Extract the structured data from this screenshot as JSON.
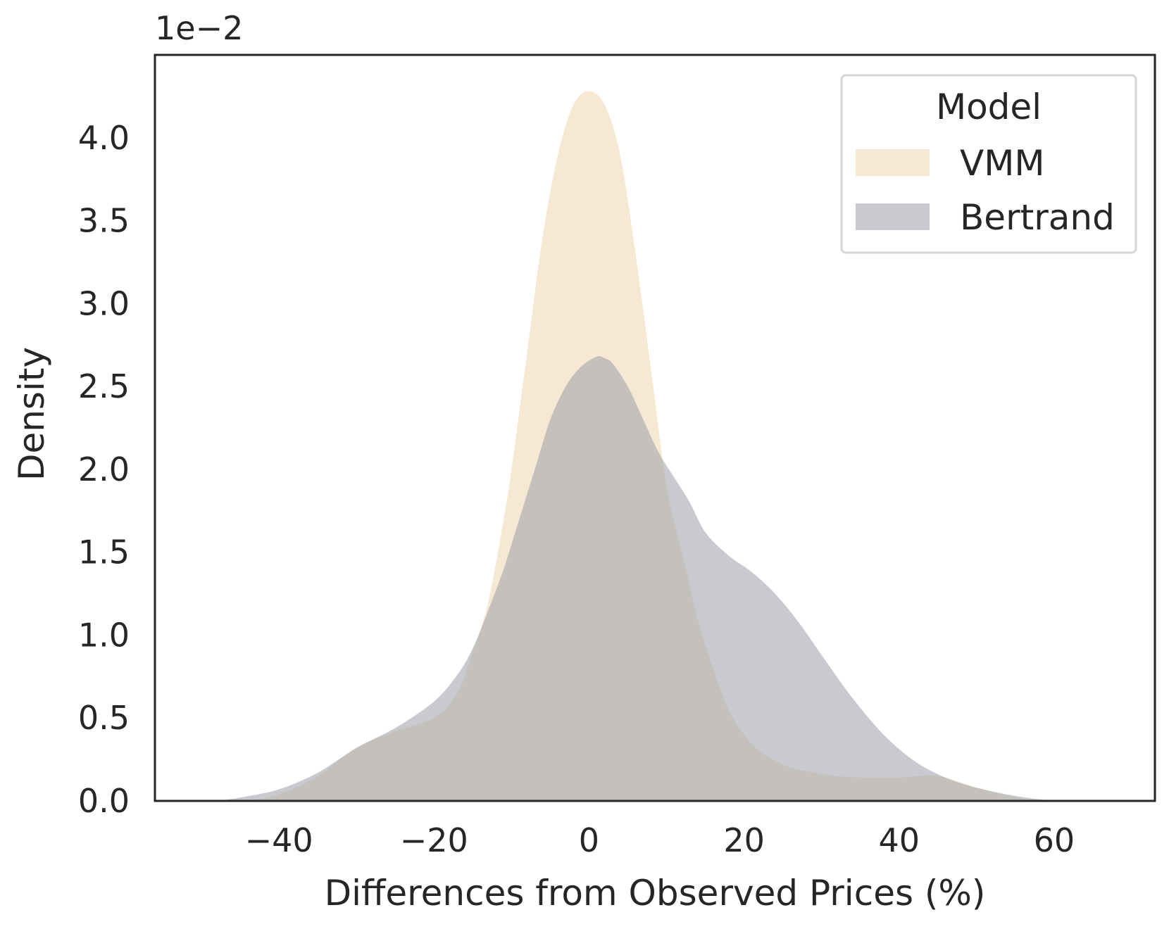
{
  "chart_data": {
    "type": "area",
    "title": "",
    "xlabel": "Differences from Observed Prices (%)",
    "ylabel": "Density",
    "offset_label": "1e−2",
    "xlim": [
      -56,
      73
    ],
    "ylim": [
      0,
      4.5
    ],
    "xticks": [
      -40,
      -20,
      0,
      20,
      40,
      60
    ],
    "xtick_labels": [
      "−40",
      "−20",
      "0",
      "20",
      "40",
      "60"
    ],
    "yticks": [
      0.0,
      0.5,
      1.0,
      1.5,
      2.0,
      2.5,
      3.0,
      3.5,
      4.0
    ],
    "ytick_labels": [
      "0.0",
      "0.5",
      "1.0",
      "1.5",
      "2.0",
      "2.5",
      "3.0",
      "3.5",
      "4.0"
    ],
    "grid": false,
    "legend": {
      "title": "Model",
      "placement": "top-right"
    },
    "series": [
      {
        "name": "VMM",
        "color": "#f1d9b5",
        "opacity": 0.6,
        "x": [
          -44,
          -40,
          -35,
          -30,
          -25,
          -20,
          -17,
          -15,
          -13,
          -11,
          -10,
          -8,
          -6,
          -4,
          -2,
          0,
          2,
          4,
          6,
          8,
          10,
          12,
          14,
          16,
          18,
          20,
          22,
          25,
          28,
          32,
          36,
          40,
          45,
          50,
          55,
          58
        ],
        "y": [
          0.0,
          0.04,
          0.15,
          0.32,
          0.42,
          0.5,
          0.65,
          0.9,
          1.2,
          1.7,
          2.0,
          2.7,
          3.4,
          3.9,
          4.2,
          4.28,
          4.2,
          3.9,
          3.3,
          2.6,
          1.9,
          1.5,
          1.1,
          0.8,
          0.55,
          0.4,
          0.3,
          0.22,
          0.18,
          0.15,
          0.14,
          0.14,
          0.15,
          0.08,
          0.02,
          0.0
        ]
      },
      {
        "name": "Bertrand",
        "color": "#9b9faa",
        "opacity": 0.55,
        "x": [
          -48,
          -45,
          -40,
          -35,
          -30,
          -25,
          -20,
          -17,
          -15,
          -13,
          -11,
          -9,
          -7,
          -5,
          -3,
          -1,
          1,
          2,
          3,
          5,
          7,
          9,
          11,
          13,
          15,
          18,
          21,
          24,
          27,
          30,
          34,
          38,
          42,
          46,
          50,
          55,
          60,
          62
        ],
        "y": [
          0.0,
          0.02,
          0.07,
          0.17,
          0.32,
          0.44,
          0.6,
          0.76,
          0.92,
          1.15,
          1.4,
          1.7,
          2.0,
          2.3,
          2.5,
          2.62,
          2.68,
          2.67,
          2.64,
          2.5,
          2.3,
          2.1,
          1.95,
          1.8,
          1.62,
          1.48,
          1.38,
          1.25,
          1.08,
          0.88,
          0.62,
          0.4,
          0.24,
          0.14,
          0.08,
          0.03,
          0.0,
          0.0
        ]
      }
    ]
  }
}
